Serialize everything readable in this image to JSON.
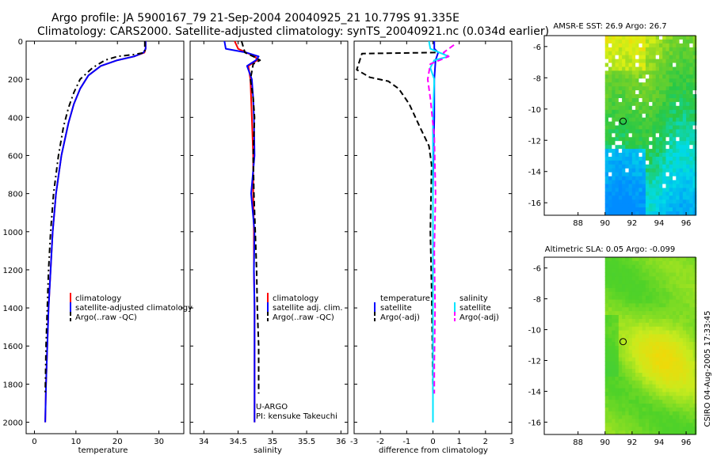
{
  "header": {
    "line1": "Argo profile: JA 5900167_79 21-Sep-2004 20040925_21 10.779S 91.335E",
    "line2": "Climatology: CARS2000. Satellite-adjusted climatology: synTS_20040921.nc (0.034d earlier)"
  },
  "side_label": "CSIRO 04-Aug-2005 17:33:45",
  "colors": {
    "clim": "#ff0000",
    "sat": "#0000ff",
    "argo": "#000000",
    "sal_sat": "#00e5ff",
    "sal_argo": "#ff00ff"
  },
  "chart_data": [
    {
      "type": "line",
      "name": "temperature",
      "xlabel": "temperature",
      "xlim": [
        -2,
        36
      ],
      "ylim": [
        0,
        2060
      ],
      "xticks": [
        0,
        10,
        20,
        30
      ],
      "yticks": [
        0,
        200,
        400,
        600,
        800,
        1000,
        1200,
        1400,
        1600,
        1800,
        2000
      ],
      "legend": [
        "climatology",
        "satellite-adjusted climatology",
        "Argo(..raw -QC)"
      ],
      "series": [
        {
          "name": "climatology",
          "color": "clim",
          "dash": "",
          "x": [
            26.8,
            26.8,
            26.5,
            24,
            20,
            16,
            13,
            11,
            9.5,
            8.2,
            6.5,
            5.2,
            4.4,
            3.9,
            3.4,
            3.1,
            2.8,
            2.6
          ],
          "y": [
            0,
            40,
            60,
            80,
            100,
            130,
            180,
            250,
            330,
            430,
            600,
            800,
            1000,
            1200,
            1400,
            1600,
            1800,
            2000
          ]
        },
        {
          "name": "satellite-adjusted climatology",
          "color": "sat",
          "dash": "",
          "x": [
            26.8,
            26.8,
            26.3,
            24,
            20,
            16,
            13,
            11,
            9.5,
            8.2,
            6.5,
            5.2,
            4.4,
            3.9,
            3.4,
            3.1,
            2.8,
            2.6
          ],
          "y": [
            0,
            40,
            60,
            80,
            100,
            130,
            180,
            250,
            330,
            430,
            600,
            800,
            1000,
            1200,
            1400,
            1600,
            1800,
            2000
          ]
        },
        {
          "name": "Argo(..raw -QC)",
          "color": "argo",
          "dash": "7,4,2,4",
          "x": [
            26.6,
            26.6,
            24,
            20,
            17,
            14,
            11,
            9.5,
            8.2,
            7,
            5.8,
            4.6,
            3.9,
            3.4,
            3.1,
            2.8,
            2.6
          ],
          "y": [
            0,
            60,
            70,
            80,
            100,
            140,
            200,
            270,
            350,
            450,
            600,
            800,
            1000,
            1200,
            1400,
            1600,
            1850
          ]
        }
      ]
    },
    {
      "type": "line",
      "name": "salinity",
      "xlabel": "salinity",
      "xlim": [
        33.8,
        36.1
      ],
      "ylim": [
        0,
        2060
      ],
      "xticks": [
        34,
        34.5,
        35,
        35.5,
        36
      ],
      "xtick_labels": [
        "34",
        "34.5",
        "35",
        "35.5",
        "36"
      ],
      "legend": [
        "climatology",
        "satellite adj. clim.",
        "Argo(..raw -QC)"
      ],
      "annotations": [
        "U-ARGO",
        "PI: kensuke Takeuchi"
      ],
      "series": [
        {
          "name": "climatology",
          "color": "clim",
          "dash": "",
          "x": [
            34.45,
            34.5,
            34.62,
            34.75,
            34.78,
            34.65,
            34.68,
            34.69,
            34.7,
            34.72,
            34.72,
            34.73,
            34.73,
            34.74,
            34.74,
            34.74,
            34.74
          ],
          "y": [
            0,
            40,
            60,
            80,
            100,
            130,
            200,
            300,
            400,
            600,
            800,
            1000,
            1200,
            1400,
            1600,
            1800,
            2000
          ]
        },
        {
          "name": "satellite adj. clim.",
          "color": "sat",
          "dash": "",
          "x": [
            34.3,
            34.32,
            34.62,
            34.8,
            34.76,
            34.63,
            34.7,
            34.72,
            34.73,
            34.74,
            34.69,
            34.74,
            34.73,
            34.74,
            34.74,
            34.74,
            34.74
          ],
          "y": [
            0,
            40,
            60,
            80,
            100,
            130,
            200,
            300,
            400,
            600,
            800,
            1000,
            1200,
            1400,
            1600,
            1800,
            2000
          ]
        },
        {
          "name": "Argo(..raw -QC)",
          "color": "argo",
          "dash": "7,4",
          "x": [
            34.55,
            34.6,
            34.72,
            34.82,
            34.72,
            34.68,
            34.72,
            34.74,
            34.72,
            34.73,
            34.75,
            34.77,
            34.78,
            34.8,
            34.8
          ],
          "y": [
            0,
            60,
            80,
            100,
            120,
            200,
            300,
            400,
            600,
            800,
            1000,
            1200,
            1400,
            1600,
            1850
          ]
        }
      ]
    },
    {
      "type": "line",
      "name": "difference",
      "xlabel": "difference from climatology",
      "xlim": [
        -3,
        3
      ],
      "ylim": [
        0,
        2060
      ],
      "xticks": [
        -3,
        -2,
        -1,
        0,
        1,
        2,
        3
      ],
      "legend_left": [
        "temperature",
        "satellite",
        "Argo(-adj)"
      ],
      "legend_right": [
        "salinity",
        "satellite",
        "Argo(-adj)"
      ],
      "series": [
        {
          "name": "temperature satellite",
          "color": "sat",
          "dash": "",
          "x": [
            0.05,
            0.05,
            0.2,
            0.1,
            0.05,
            0.05,
            0.02,
            0,
            0,
            0,
            0,
            0
          ],
          "y": [
            0,
            40,
            60,
            100,
            200,
            400,
            600,
            800,
            1000,
            1400,
            1700,
            2000
          ]
        },
        {
          "name": "temperature Argo(-adj)",
          "color": "argo",
          "dash": "7,4",
          "x": [
            0.1,
            -2.7,
            -2.9,
            -2.4,
            -1.7,
            -1.3,
            -0.9,
            -0.5,
            -0.15,
            -0.05,
            -0.1,
            -0.05,
            -0.02,
            0
          ],
          "y": [
            60,
            65,
            150,
            190,
            210,
            250,
            330,
            450,
            550,
            650,
            1000,
            1300,
            1600,
            1850
          ]
        },
        {
          "name": "salinity satellite",
          "color": "sal_sat",
          "dash": "",
          "x": [
            -0.15,
            -0.1,
            0.6,
            0.05,
            -0.1,
            0.05,
            0,
            0,
            0,
            0,
            0,
            0
          ],
          "y": [
            0,
            40,
            80,
            100,
            140,
            200,
            400,
            600,
            1000,
            1400,
            1700,
            2000
          ]
        },
        {
          "name": "salinity Argo(-adj)",
          "color": "sal_argo",
          "dash": "7,4",
          "x": [
            0.8,
            0.4,
            0.6,
            -0.1,
            -0.2,
            -0.1,
            0.05,
            0.1,
            0.05,
            0.08,
            0.05,
            0.05
          ],
          "y": [
            20,
            60,
            80,
            120,
            200,
            300,
            500,
            800,
            1100,
            1400,
            1700,
            1850
          ]
        }
      ]
    },
    {
      "type": "heatmap",
      "name": "sst_map",
      "title": "AMSR-E SST: 26.9  Argo: 26.7",
      "xlim": [
        85.5,
        96.7
      ],
      "ylim": [
        -16.8,
        -5.3
      ],
      "xticks": [
        88,
        90,
        92,
        94,
        96
      ],
      "yticks": [
        -6,
        -8,
        -10,
        -12,
        -14,
        -16
      ],
      "float_position": [
        91.335,
        -10.779
      ]
    },
    {
      "type": "heatmap",
      "name": "sla_map",
      "title": "Altimetric SLA: 0.05  Argo: -0.099",
      "xlim": [
        85.5,
        96.7
      ],
      "ylim": [
        -16.8,
        -5.3
      ],
      "xticks": [
        88,
        90,
        92,
        94,
        96
      ],
      "yticks": [
        -6,
        -8,
        -10,
        -12,
        -14,
        -16
      ],
      "float_position": [
        91.335,
        -10.779
      ]
    }
  ]
}
